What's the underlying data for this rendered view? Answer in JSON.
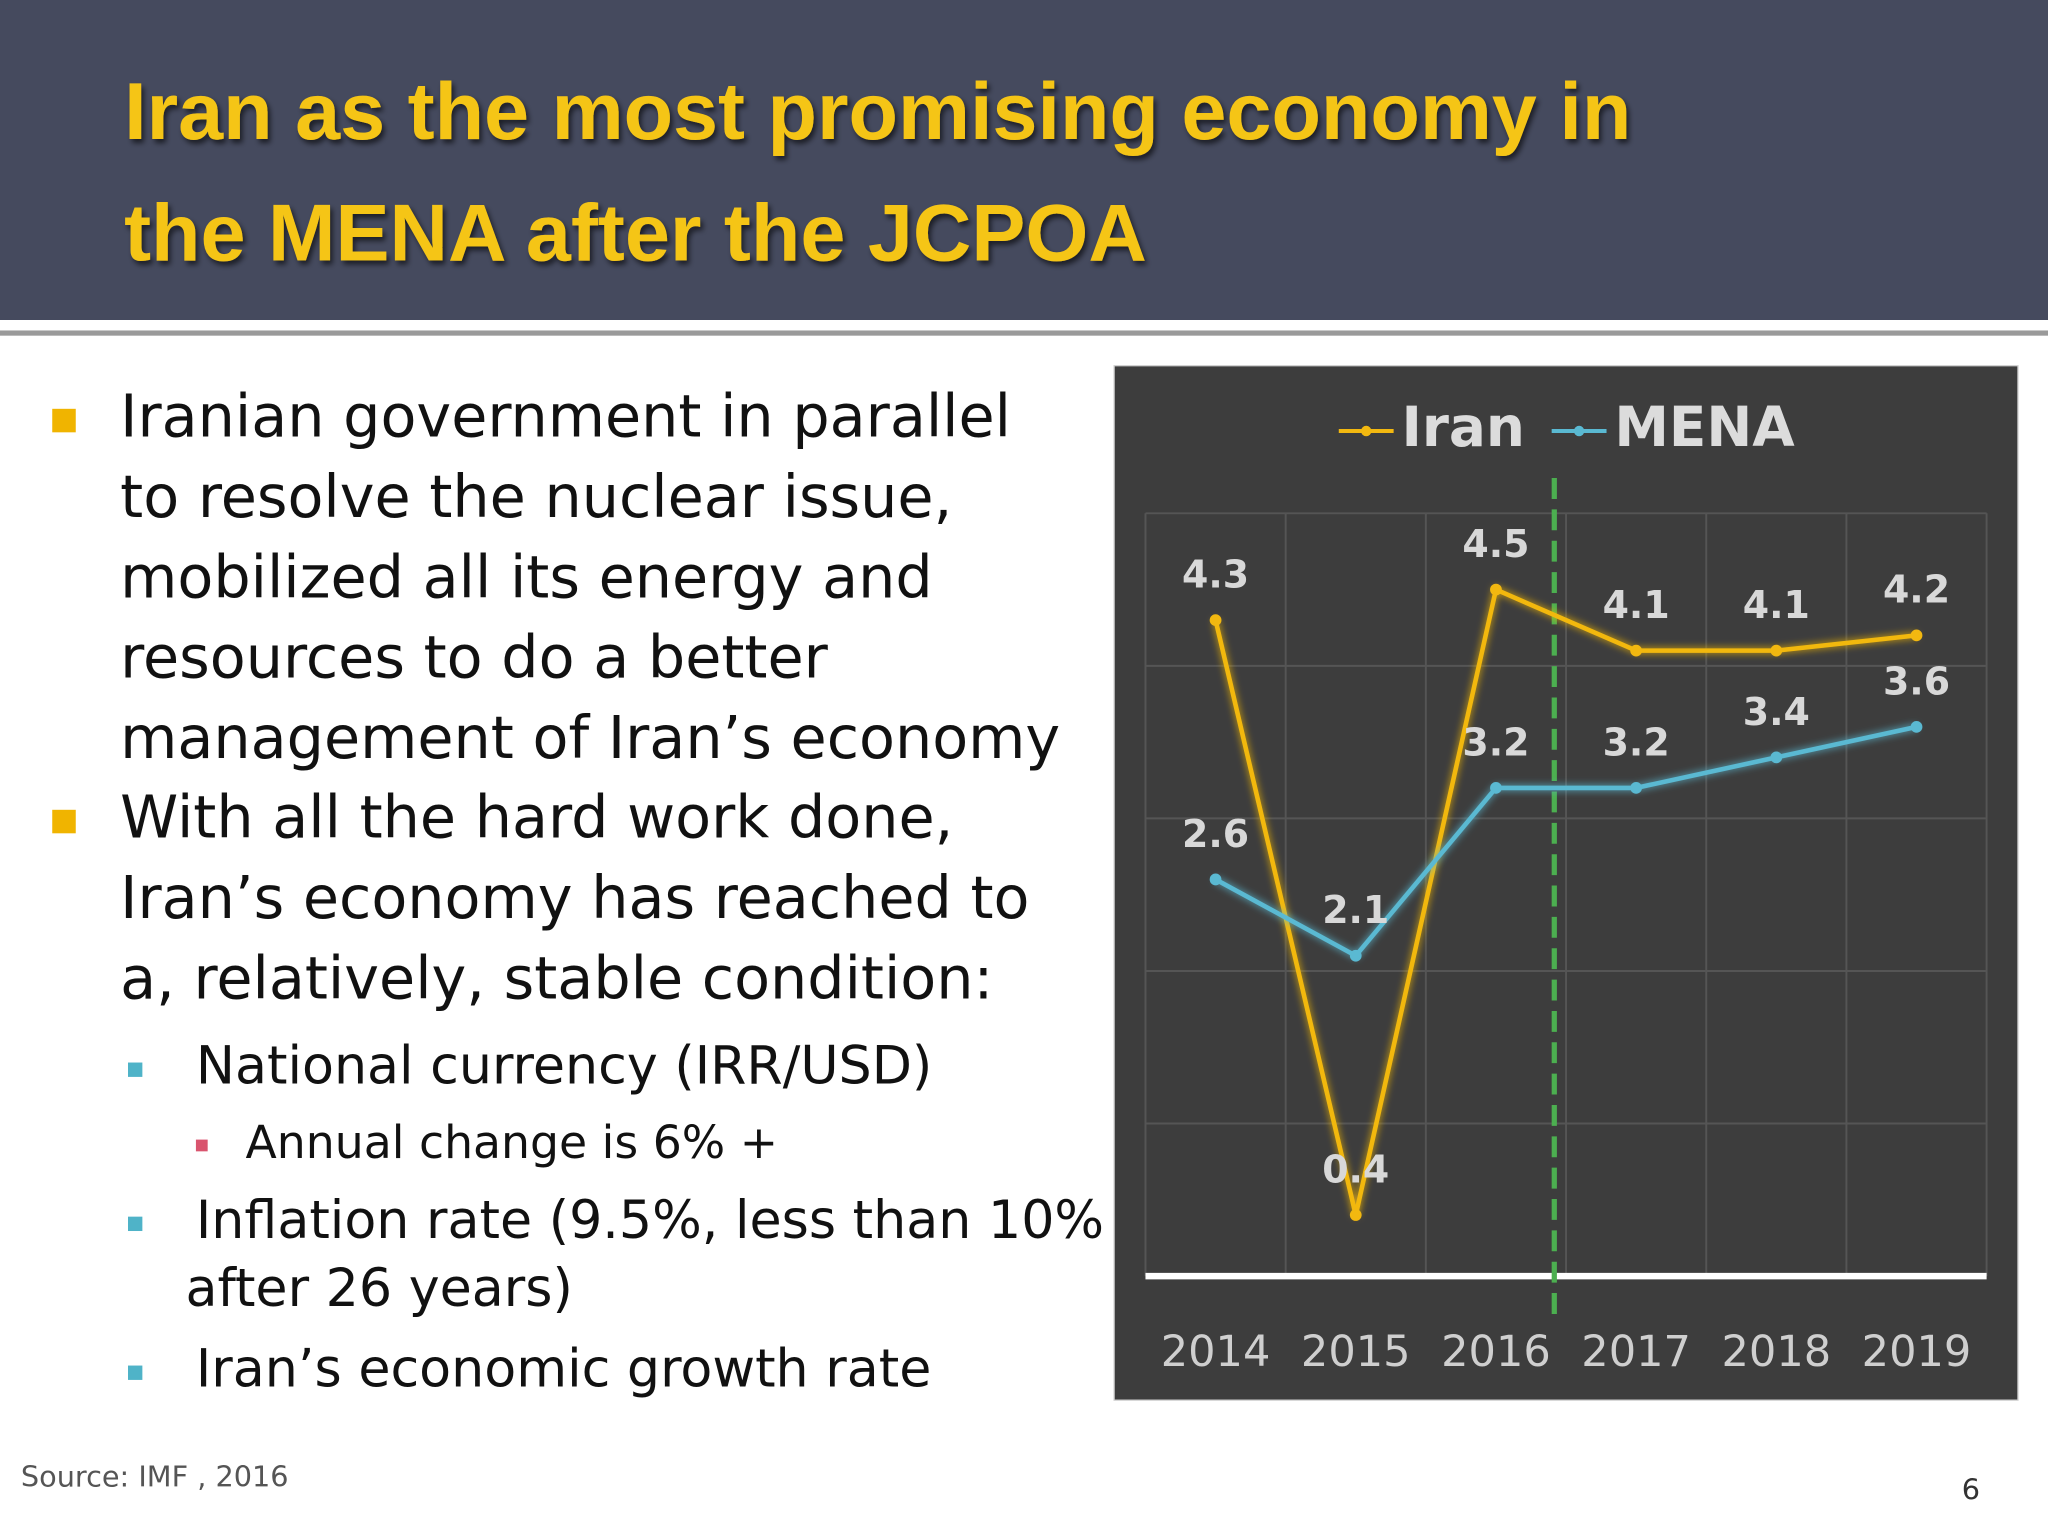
{
  "header": {
    "title": [
      "Iran as the most promising economy in",
      "the MENA after the JCPOA"
    ]
  },
  "bullets": [
    {
      "level": 1,
      "lines": [
        "Iranian government in parallel",
        "to resolve the nuclear issue,",
        "mobilized all its energy and",
        "resources to do a better",
        "management of Iran’s economy"
      ]
    },
    {
      "level": 1,
      "lines": [
        "With all the hard work done,",
        "Iran’s economy has reached to",
        "a, relatively, stable condition:"
      ]
    },
    {
      "level": 2,
      "lines": [
        "National currency (IRR/USD)"
      ]
    },
    {
      "level": 3,
      "lines": [
        "Annual change is 6% +"
      ]
    },
    {
      "level": 2,
      "lines": [
        "Inflation rate (9.5%, less than 10%",
        "after 26 years)"
      ]
    },
    {
      "level": 2,
      "lines": [
        "Iran’s economic growth rate"
      ]
    }
  ],
  "footer": {
    "source": "Source: IMF , 2016",
    "page": "6"
  },
  "chart_data": {
    "type": "line",
    "categories": [
      "2014",
      "2015",
      "2016",
      "2017",
      "2018",
      "2019"
    ],
    "series": [
      {
        "name": "Iran",
        "color": "#f2b810",
        "values": [
          4.3,
          0.4,
          4.5,
          4.1,
          4.1,
          4.2
        ]
      },
      {
        "name": "MENA",
        "color": "#5ab9d2",
        "values": [
          2.6,
          2.1,
          3.2,
          3.2,
          3.4,
          3.6
        ]
      }
    ],
    "ylim": [
      0,
      5
    ],
    "yticks": [
      0,
      1,
      2,
      3,
      4,
      5
    ],
    "grid": true,
    "legend": "top"
  }
}
